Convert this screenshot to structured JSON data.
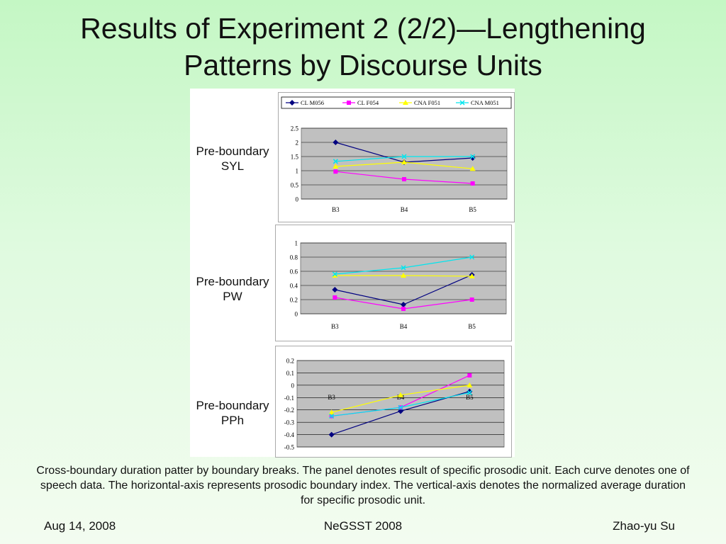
{
  "slide": {
    "title": "Results of Experiment 2 (2/2)—Lengthening Patterns by Discourse Units",
    "caption": "Cross-boundary duration patter by boundary breaks. The panel denotes result of specific prosodic unit. Each curve denotes one of speech data. The horizontal-axis represents prosodic boundary index. The vertical-axis denotes the normalized average duration for specific prosodic unit.",
    "footer_left": "Aug 14, 2008",
    "footer_center": "NeGSST 2008",
    "footer_right": "Zhao-yu Su",
    "panel_labels": [
      {
        "line1": "Pre-boundary",
        "line2": "SYL"
      },
      {
        "line1": "Pre-boundary",
        "line2": "PW"
      },
      {
        "line1": "Pre-boundary",
        "line2": "PPh"
      }
    ]
  },
  "chart_data": [
    {
      "type": "line",
      "panel": "Pre-boundary SYL",
      "categories": [
        "B3",
        "B4",
        "B5"
      ],
      "ylim": [
        0,
        2.5
      ],
      "yticks": [
        "0",
        "0.5",
        "1",
        "1.5",
        "2",
        "2.5"
      ],
      "grid": true,
      "legend": "top",
      "series": [
        {
          "name": "CL M056",
          "color": "#000080",
          "marker": "diamond",
          "values": [
            2.0,
            1.3,
            1.45
          ]
        },
        {
          "name": "CL F054",
          "color": "#ff00ff",
          "marker": "square",
          "values": [
            0.97,
            0.7,
            0.55
          ]
        },
        {
          "name": "CNA F051",
          "color": "#ffff00",
          "marker": "triangle",
          "values": [
            1.15,
            1.3,
            1.07
          ]
        },
        {
          "name": "CNA M051",
          "color": "#00e5ee",
          "marker": "x",
          "values": [
            1.33,
            1.5,
            1.5
          ]
        }
      ]
    },
    {
      "type": "line",
      "panel": "Pre-boundary PW",
      "categories": [
        "B3",
        "B4",
        "B5"
      ],
      "ylim": [
        0,
        1
      ],
      "yticks": [
        "0",
        "0.2",
        "0.4",
        "0.6",
        "0.8",
        "1"
      ],
      "grid": true,
      "series": [
        {
          "name": "CL M056",
          "color": "#000080",
          "marker": "diamond",
          "values": [
            0.34,
            0.13,
            0.55
          ]
        },
        {
          "name": "CL F054",
          "color": "#ff00ff",
          "marker": "square",
          "values": [
            0.23,
            0.07,
            0.2
          ]
        },
        {
          "name": "CNA F051",
          "color": "#ffff00",
          "marker": "triangle",
          "values": [
            0.54,
            0.54,
            0.53
          ]
        },
        {
          "name": "CNA M051",
          "color": "#00e5ee",
          "marker": "x",
          "values": [
            0.56,
            0.65,
            0.8
          ]
        }
      ]
    },
    {
      "type": "line",
      "panel": "Pre-boundary PPh",
      "categories": [
        "B3",
        "B4",
        "B5"
      ],
      "ylim": [
        -0.5,
        0.2
      ],
      "yticks": [
        "-0.5",
        "-0.4",
        "-0.3",
        "-0.2",
        "-0.1",
        "0",
        "0.1",
        "0.2"
      ],
      "grid": true,
      "series": [
        {
          "name": "CL M056",
          "color": "#000080",
          "marker": "diamond",
          "values": [
            -0.4,
            -0.21,
            -0.05
          ]
        },
        {
          "name": "CL F054",
          "color": "#ff00ff",
          "marker": "square",
          "values": [
            -0.25,
            -0.18,
            0.08
          ]
        },
        {
          "name": "CNA F051",
          "color": "#ffff00",
          "marker": "triangle",
          "values": [
            -0.22,
            -0.08,
            0.0
          ]
        },
        {
          "name": "CNA M051",
          "color": "#00e5ee",
          "marker": "x",
          "values": [
            -0.25,
            -0.18,
            -0.06
          ]
        }
      ]
    }
  ]
}
